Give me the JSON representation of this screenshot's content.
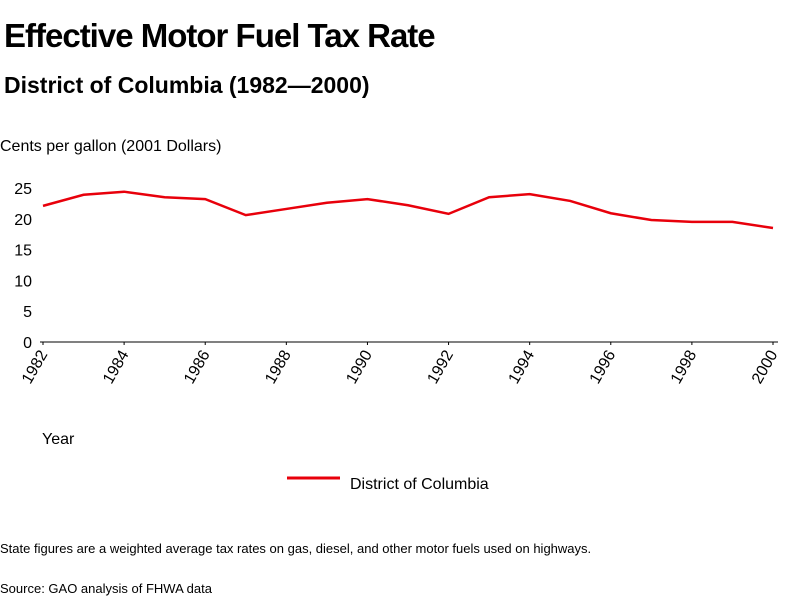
{
  "chart_data": {
    "type": "line",
    "title": "Effective Motor Fuel Tax Rate",
    "subtitle": "District of Columbia (1982—2000)",
    "y_label": "Cents per gallon (2001 Dollars)",
    "x_label": "Year",
    "x": [
      1982,
      1983,
      1984,
      1985,
      1986,
      1987,
      1988,
      1989,
      1990,
      1991,
      1992,
      1993,
      1994,
      1995,
      1996,
      1997,
      1998,
      1999,
      2000
    ],
    "series": [
      {
        "name": "District of Columbia",
        "color": "#e8000b",
        "values": [
          22.1,
          23.9,
          24.4,
          23.5,
          23.2,
          20.6,
          21.6,
          22.6,
          23.2,
          22.2,
          20.8,
          23.5,
          24.0,
          22.9,
          20.9,
          19.8,
          19.5,
          19.5,
          18.5
        ]
      }
    ],
    "xlim": [
      1982,
      2000
    ],
    "xticks": [
      1982,
      1984,
      1986,
      1988,
      1990,
      1992,
      1994,
      1996,
      1998,
      2000
    ],
    "ylim": [
      0,
      25
    ],
    "yticks": [
      0,
      5,
      10,
      15,
      20,
      25
    ],
    "grid": false,
    "notes": [
      "State figures are a weighted average tax rates on gas, diesel, and other motor fuels used on highways.",
      "Source: GAO analysis of FHWA data"
    ]
  }
}
